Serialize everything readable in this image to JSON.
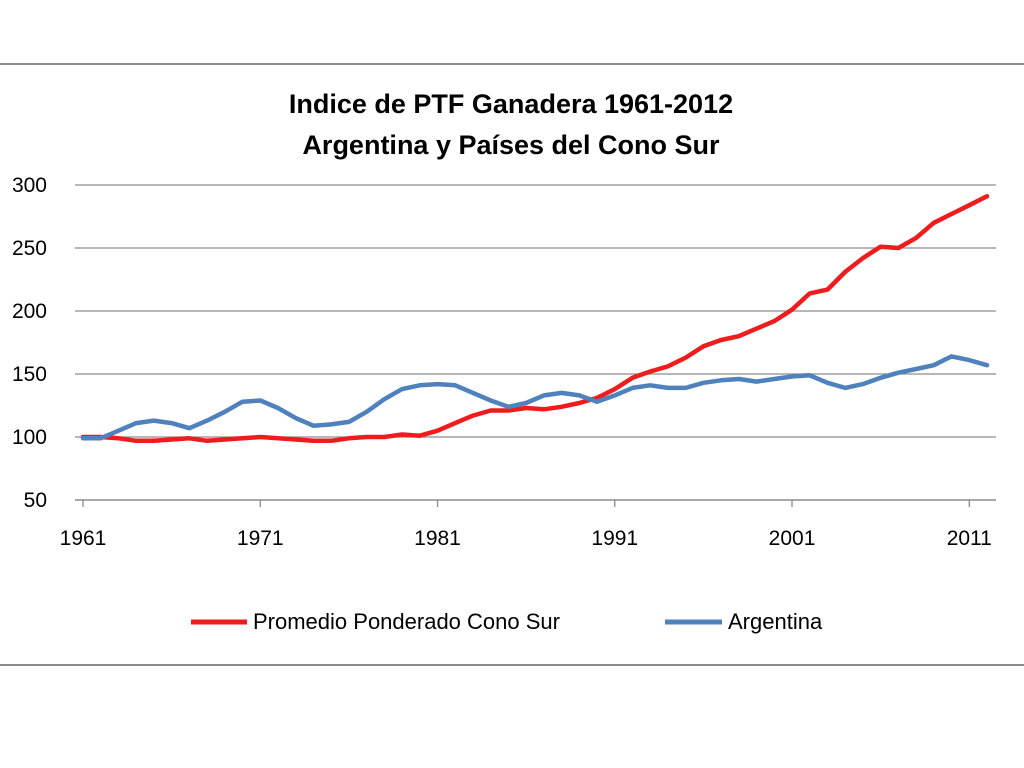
{
  "chart_data": {
    "type": "line",
    "title": [
      "Indice de PTF Ganadera 1961-2012",
      "Argentina y Países del Cono Sur"
    ],
    "xlabel": "",
    "ylabel": "",
    "xlim": [
      1961,
      2012
    ],
    "ylim": [
      50,
      300
    ],
    "yticks": [
      50,
      100,
      150,
      200,
      250,
      300
    ],
    "xticks": [
      1961,
      1971,
      1981,
      1991,
      2001,
      2011
    ],
    "grid": true,
    "legend_position": "bottom",
    "x": [
      1961,
      1962,
      1963,
      1964,
      1965,
      1966,
      1967,
      1968,
      1969,
      1970,
      1971,
      1972,
      1973,
      1974,
      1975,
      1976,
      1977,
      1978,
      1979,
      1980,
      1981,
      1982,
      1983,
      1984,
      1985,
      1986,
      1987,
      1988,
      1989,
      1990,
      1991,
      1992,
      1993,
      1994,
      1995,
      1996,
      1997,
      1998,
      1999,
      2000,
      2001,
      2002,
      2003,
      2004,
      2005,
      2006,
      2007,
      2008,
      2009,
      2010,
      2011,
      2012
    ],
    "series": [
      {
        "name": "Promedio Ponderado Cono Sur",
        "color": "#ee1c1c",
        "values": [
          100,
          100,
          99,
          97,
          97,
          98,
          99,
          97,
          98,
          99,
          100,
          99,
          98,
          97,
          97,
          99,
          100,
          100,
          102,
          101,
          105,
          111,
          117,
          121,
          121,
          123,
          122,
          124,
          127,
          131,
          138,
          147,
          152,
          156,
          163,
          172,
          177,
          180,
          186,
          192,
          201,
          214,
          217,
          231,
          242,
          251,
          250,
          258,
          270,
          277,
          284,
          291
        ]
      },
      {
        "name": "Argentina",
        "color": "#4f81bd",
        "values": [
          99,
          99,
          105,
          111,
          113,
          111,
          107,
          113,
          120,
          128,
          129,
          123,
          115,
          109,
          110,
          112,
          120,
          130,
          138,
          141,
          142,
          141,
          135,
          129,
          124,
          127,
          133,
          135,
          133,
          128,
          133,
          139,
          141,
          139,
          139,
          143,
          145,
          146,
          144,
          146,
          148,
          149,
          143,
          139,
          142,
          147,
          151,
          154,
          157,
          164,
          161,
          157
        ]
      }
    ]
  }
}
